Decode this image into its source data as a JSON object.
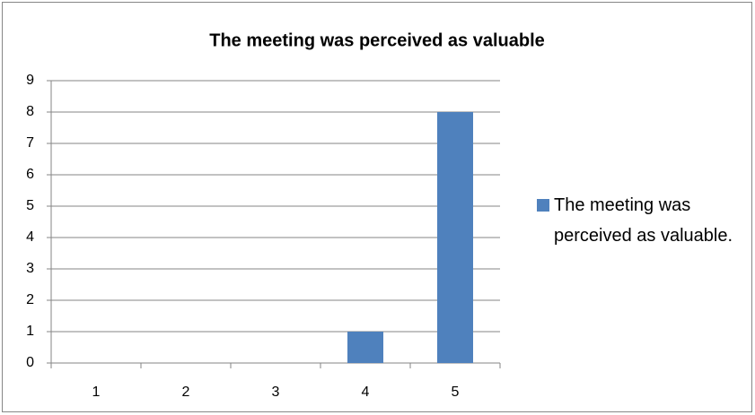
{
  "chart_data": {
    "type": "bar",
    "title": "The meeting was perceived as valuable",
    "categories": [
      "1",
      "2",
      "3",
      "4",
      "5"
    ],
    "series": [
      {
        "name": "The meeting was perceived as valuable.",
        "color": "#4f81bd",
        "values": [
          0,
          0,
          0,
          1,
          8
        ]
      }
    ],
    "ylim": [
      0,
      9
    ],
    "yticks": [
      0,
      1,
      2,
      3,
      4,
      5,
      6,
      7,
      8,
      9
    ],
    "grid": true,
    "legend": "right"
  }
}
